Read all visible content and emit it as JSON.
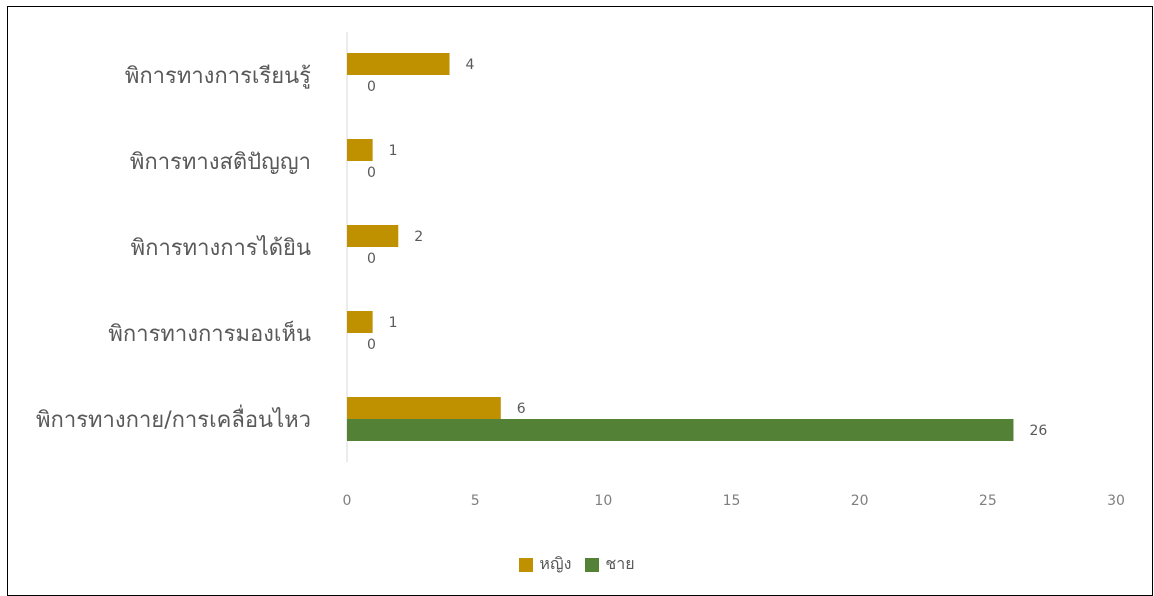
{
  "chart_data": {
    "type": "bar",
    "orientation": "horizontal",
    "categories": [
      "พิการทางการเรียนรู้",
      "พิการทางสติปัญญา",
      "พิการทางการได้ยิน",
      "พิการทางการมองเห็น",
      "พิการทางกาย/การเคลื่อนไหว"
    ],
    "series": [
      {
        "name": "หญิง",
        "color": "#bf9000",
        "values": [
          4,
          1,
          2,
          1,
          6
        ]
      },
      {
        "name": "ชาย",
        "color": "#538135",
        "values": [
          0,
          0,
          0,
          0,
          26
        ]
      }
    ],
    "xlim": [
      0,
      30
    ],
    "xticks": [
      0,
      5,
      10,
      15,
      20,
      25,
      30
    ],
    "grid": false,
    "legend_position": "bottom"
  }
}
